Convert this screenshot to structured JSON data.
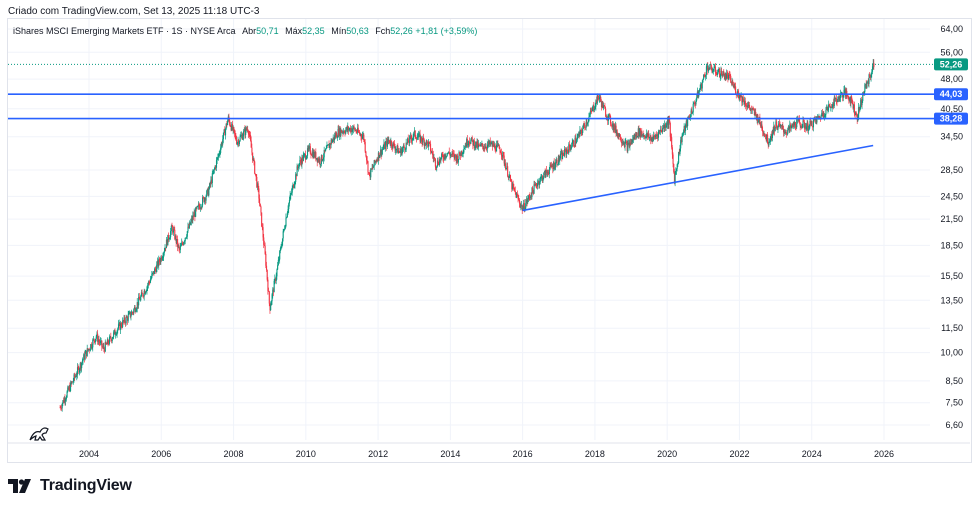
{
  "header": {
    "caption": "Criado com TradingView.com, Set 13, 2025 11:18 UTC-3"
  },
  "legend": {
    "symbol": "iShares MSCI Emerging Markets ETF · 1S · NYSE Arca",
    "open_label": "Abr",
    "open_value": "50,71",
    "high_label": "Máx",
    "high_value": "52,35",
    "low_label": "Mín",
    "low_value": "50,63",
    "close_label": "Fch",
    "close_value": "52,26",
    "change_value": "+1,81 (+3,59%)"
  },
  "footer": {
    "brand": "TradingView"
  },
  "colors": {
    "up": "#089981",
    "down": "#f23645",
    "line": "#2962ff",
    "grid": "#f0f3fa",
    "price_tag": "#089981"
  },
  "chart_data": {
    "type": "candlestick",
    "scale": "log",
    "x_ticks": [
      "2004",
      "2006",
      "2008",
      "2010",
      "2012",
      "2014",
      "2016",
      "2018",
      "2020",
      "2022",
      "2024",
      "2026"
    ],
    "y_ticks": [
      "64,00",
      "56,00",
      "48,00",
      "40,50",
      "34,50",
      "28,50",
      "24,50",
      "21,50",
      "18,50",
      "15,50",
      "13,50",
      "11,50",
      "10,00",
      "8,50",
      "7,50",
      "6,60"
    ],
    "y_tick_values": [
      64,
      56,
      48,
      40.5,
      34.5,
      28.5,
      24.5,
      21.5,
      18.5,
      15.5,
      13.5,
      11.5,
      10,
      8.5,
      7.5,
      6.6
    ],
    "xlim": [
      2003.0,
      2026.7
    ],
    "ylim": [
      6.2,
      70
    ],
    "series_path": [
      [
        2003.2,
        7.3
      ],
      [
        2003.5,
        8.3
      ],
      [
        2003.9,
        9.9
      ],
      [
        2004.2,
        11.0
      ],
      [
        2004.4,
        10.2
      ],
      [
        2004.8,
        11.5
      ],
      [
        2005.2,
        12.6
      ],
      [
        2005.6,
        14.6
      ],
      [
        2006.0,
        17.3
      ],
      [
        2006.3,
        20.5
      ],
      [
        2006.5,
        17.9
      ],
      [
        2006.9,
        22.0
      ],
      [
        2007.3,
        25.2
      ],
      [
        2007.6,
        31.5
      ],
      [
        2007.85,
        38.3
      ],
      [
        2008.1,
        33.5
      ],
      [
        2008.4,
        36.4
      ],
      [
        2008.7,
        24.5
      ],
      [
        2008.9,
        16.5
      ],
      [
        2009.0,
        12.9
      ],
      [
        2009.2,
        16.0
      ],
      [
        2009.5,
        23.0
      ],
      [
        2009.8,
        29.5
      ],
      [
        2010.1,
        32.0
      ],
      [
        2010.4,
        30.0
      ],
      [
        2010.7,
        33.5
      ],
      [
        2010.9,
        35.5
      ],
      [
        2011.3,
        36.2
      ],
      [
        2011.6,
        34.5
      ],
      [
        2011.75,
        27.5
      ],
      [
        2012.0,
        31.0
      ],
      [
        2012.3,
        33.8
      ],
      [
        2012.6,
        31.5
      ],
      [
        2013.0,
        35.0
      ],
      [
        2013.4,
        33.0
      ],
      [
        2013.6,
        29.5
      ],
      [
        2013.9,
        31.5
      ],
      [
        2014.2,
        30.5
      ],
      [
        2014.5,
        34.0
      ],
      [
        2014.8,
        32.5
      ],
      [
        2015.1,
        33.0
      ],
      [
        2015.4,
        32.0
      ],
      [
        2015.7,
        26.0
      ],
      [
        2016.0,
        22.8
      ],
      [
        2016.4,
        26.5
      ],
      [
        2016.8,
        29.0
      ],
      [
        2017.1,
        31.0
      ],
      [
        2017.5,
        34.0
      ],
      [
        2017.8,
        38.0
      ],
      [
        2018.1,
        43.5
      ],
      [
        2018.3,
        39.5
      ],
      [
        2018.6,
        35.5
      ],
      [
        2018.9,
        32.5
      ],
      [
        2019.2,
        35.5
      ],
      [
        2019.6,
        34.0
      ],
      [
        2019.9,
        36.5
      ],
      [
        2020.05,
        38.0
      ],
      [
        2020.2,
        27.0
      ],
      [
        2020.4,
        34.5
      ],
      [
        2020.7,
        40.5
      ],
      [
        2020.95,
        46.5
      ],
      [
        2021.1,
        51.5
      ],
      [
        2021.4,
        50.0
      ],
      [
        2021.7,
        48.5
      ],
      [
        2021.9,
        45.0
      ],
      [
        2022.2,
        41.5
      ],
      [
        2022.5,
        38.5
      ],
      [
        2022.8,
        33.5
      ],
      [
        2023.0,
        37.0
      ],
      [
        2023.3,
        35.5
      ],
      [
        2023.6,
        37.5
      ],
      [
        2023.9,
        36.5
      ],
      [
        2024.2,
        38.5
      ],
      [
        2024.6,
        42.0
      ],
      [
        2024.9,
        44.5
      ],
      [
        2025.1,
        42.5
      ],
      [
        2025.25,
        38.5
      ],
      [
        2025.45,
        45.0
      ],
      [
        2025.6,
        48.5
      ],
      [
        2025.72,
        52.26
      ]
    ],
    "horizontal_lines": [
      {
        "label": "44,03",
        "value": 44.03
      },
      {
        "label": "38,28",
        "value": 38.28
      }
    ],
    "trend_line": {
      "from": [
        2016.0,
        22.6
      ],
      "to": [
        2025.7,
        32.8
      ]
    },
    "last_price": {
      "label": "52,26",
      "value": 52.26
    }
  }
}
